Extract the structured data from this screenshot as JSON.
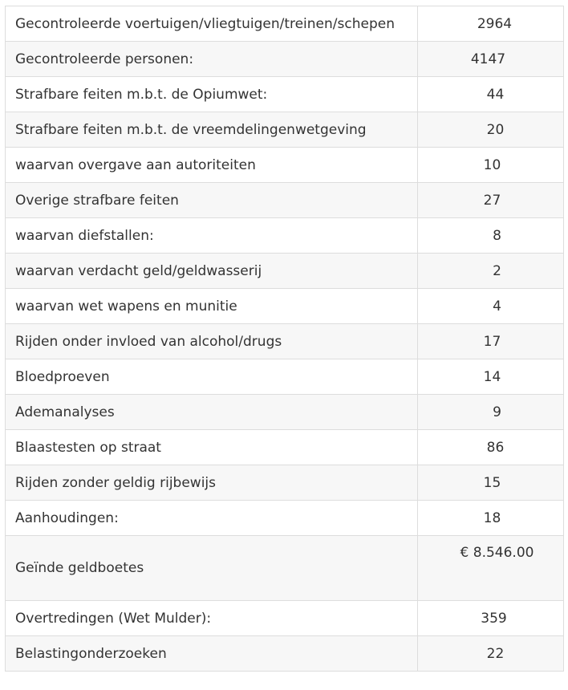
{
  "rows": [
    {
      "label": "Gecontroleerde voertuigen/vliegtuigen/treinen/schepen",
      "value": "2964"
    },
    {
      "label": "Gecontroleerde personen:",
      "value": "4147"
    },
    {
      "label": "Strafbare feiten m.b.t. de Opiumwet:",
      "value": "44"
    },
    {
      "label": "Strafbare feiten m.b.t. de vreemdelingenwetgeving",
      "value": "20"
    },
    {
      "label": "waarvan overgave aan autoriteiten",
      "value": "10"
    },
    {
      "label": "Overige strafbare feiten",
      "value": "27"
    },
    {
      "label": "waarvan diefstallen:",
      "value": "8"
    },
    {
      "label": "waarvan verdacht geld/geldwasserij",
      "value": "2"
    },
    {
      "label": "waarvan wet wapens en munitie",
      "value": "4"
    },
    {
      "label": "Rijden onder invloed van alcohol/drugs",
      "value": "17"
    },
    {
      "label": "Bloedproeven",
      "value": "14"
    },
    {
      "label": "Ademanalyses",
      "value": "9"
    },
    {
      "label": "Blaastesten op straat",
      "value": "86"
    },
    {
      "label": "Rijden zonder geldig rijbewijs",
      "value": "15"
    },
    {
      "label": "Aanhoudingen:",
      "value": "18"
    },
    {
      "label": "Geïnde geldboetes",
      "value": "€ 8.546.00"
    },
    {
      "label": "Overtredingen (Wet Mulder):",
      "value": "359"
    },
    {
      "label": "Belastingonderzoeken",
      "value": "22"
    }
  ]
}
